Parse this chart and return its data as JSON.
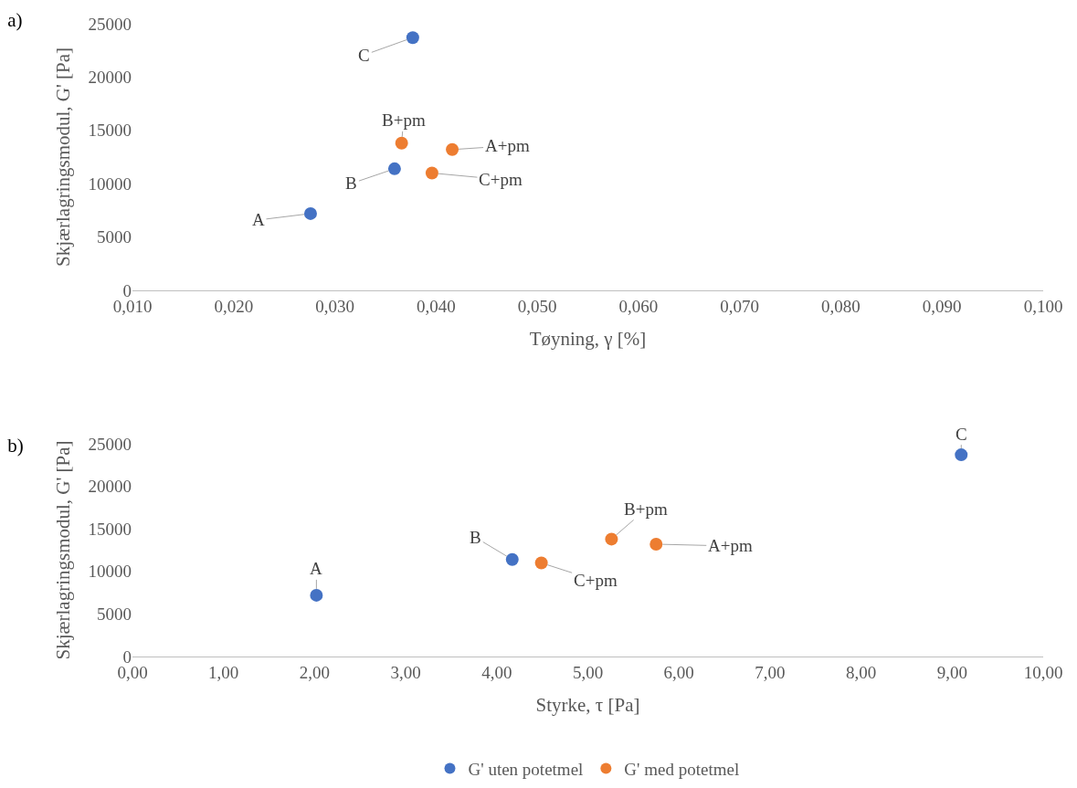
{
  "chart_data": [
    {
      "type": "scatter",
      "title": "a)",
      "xlabel": "Tøyning, γ [%]",
      "ylabel": "Skjærlagringsmodul, G' [Pa]",
      "marker": "circle",
      "grid": false,
      "legend": false,
      "xlim": [
        0.01,
        0.1
      ],
      "xticks": [
        {
          "value": 0.01,
          "label": "0,010"
        },
        {
          "value": 0.02,
          "label": "0,020"
        },
        {
          "value": 0.03,
          "label": "0,030"
        },
        {
          "value": 0.04,
          "label": "0,040"
        },
        {
          "value": 0.05,
          "label": "0,050"
        },
        {
          "value": 0.06,
          "label": "0,060"
        },
        {
          "value": 0.07,
          "label": "0,070"
        },
        {
          "value": 0.08,
          "label": "0,080"
        },
        {
          "value": 0.09,
          "label": "0,090"
        },
        {
          "value": 0.1,
          "label": "0,100"
        }
      ],
      "ylim": [
        0,
        25000
      ],
      "yticks": [
        0,
        5000,
        10000,
        15000,
        20000,
        25000
      ],
      "series": [
        {
          "color": "#4472c4",
          "x": [
            0.0276,
            0.0359,
            0.0377
          ],
          "values": [
            7200,
            11400,
            23700
          ]
        },
        {
          "color": "#ed7d31",
          "x": [
            0.0366,
            0.0416,
            0.0396
          ],
          "values": [
            13800,
            13200,
            11000
          ]
        }
      ],
      "annotations": [
        {
          "text": "A",
          "x": 0.0276,
          "y": 7200
        },
        {
          "text": "B",
          "x": 0.0359,
          "y": 11400
        },
        {
          "text": "C",
          "x": 0.0377,
          "y": 23700
        },
        {
          "text": "B+pm",
          "x": 0.0366,
          "y": 13800
        },
        {
          "text": "A+pm",
          "x": 0.0416,
          "y": 13200
        },
        {
          "text": "C+pm",
          "x": 0.0396,
          "y": 11000
        }
      ]
    },
    {
      "type": "scatter",
      "title": "b)",
      "xlabel": "Styrke, τ [Pa]",
      "ylabel": "Skjærlagringsmodul, G' [Pa]",
      "marker": "circle",
      "grid": false,
      "legend": "bottom",
      "xlim": [
        0,
        10
      ],
      "xticks": [
        {
          "value": 0,
          "label": "0,00"
        },
        {
          "value": 1,
          "label": "1,00"
        },
        {
          "value": 2,
          "label": "2,00"
        },
        {
          "value": 3,
          "label": "3,00"
        },
        {
          "value": 4,
          "label": "4,00"
        },
        {
          "value": 5,
          "label": "5,00"
        },
        {
          "value": 6,
          "label": "6,00"
        },
        {
          "value": 7,
          "label": "7,00"
        },
        {
          "value": 8,
          "label": "8,00"
        },
        {
          "value": 9,
          "label": "9,00"
        },
        {
          "value": 10,
          "label": "10,00"
        }
      ],
      "ylim": [
        0,
        25000
      ],
      "yticks": [
        0,
        5000,
        10000,
        15000,
        20000,
        25000
      ],
      "series": [
        {
          "name": "G' uten potetmel",
          "color": "#4472c4",
          "x": [
            2.02,
            4.17,
            9.1
          ],
          "values": [
            7200,
            11400,
            23700
          ]
        },
        {
          "name": "G' med potetmel",
          "color": "#ed7d31",
          "x": [
            5.26,
            5.75,
            4.49
          ],
          "values": [
            13800,
            13200,
            11000
          ]
        }
      ],
      "annotations": [
        {
          "text": "A",
          "x": 2.02,
          "y": 7200
        },
        {
          "text": "B",
          "x": 4.17,
          "y": 11400
        },
        {
          "text": "C",
          "x": 9.1,
          "y": 23700
        },
        {
          "text": "B+pm",
          "x": 5.26,
          "y": 13800
        },
        {
          "text": "A+pm",
          "x": 5.75,
          "y": 13200
        },
        {
          "text": "C+pm",
          "x": 4.49,
          "y": 11000
        }
      ]
    }
  ]
}
